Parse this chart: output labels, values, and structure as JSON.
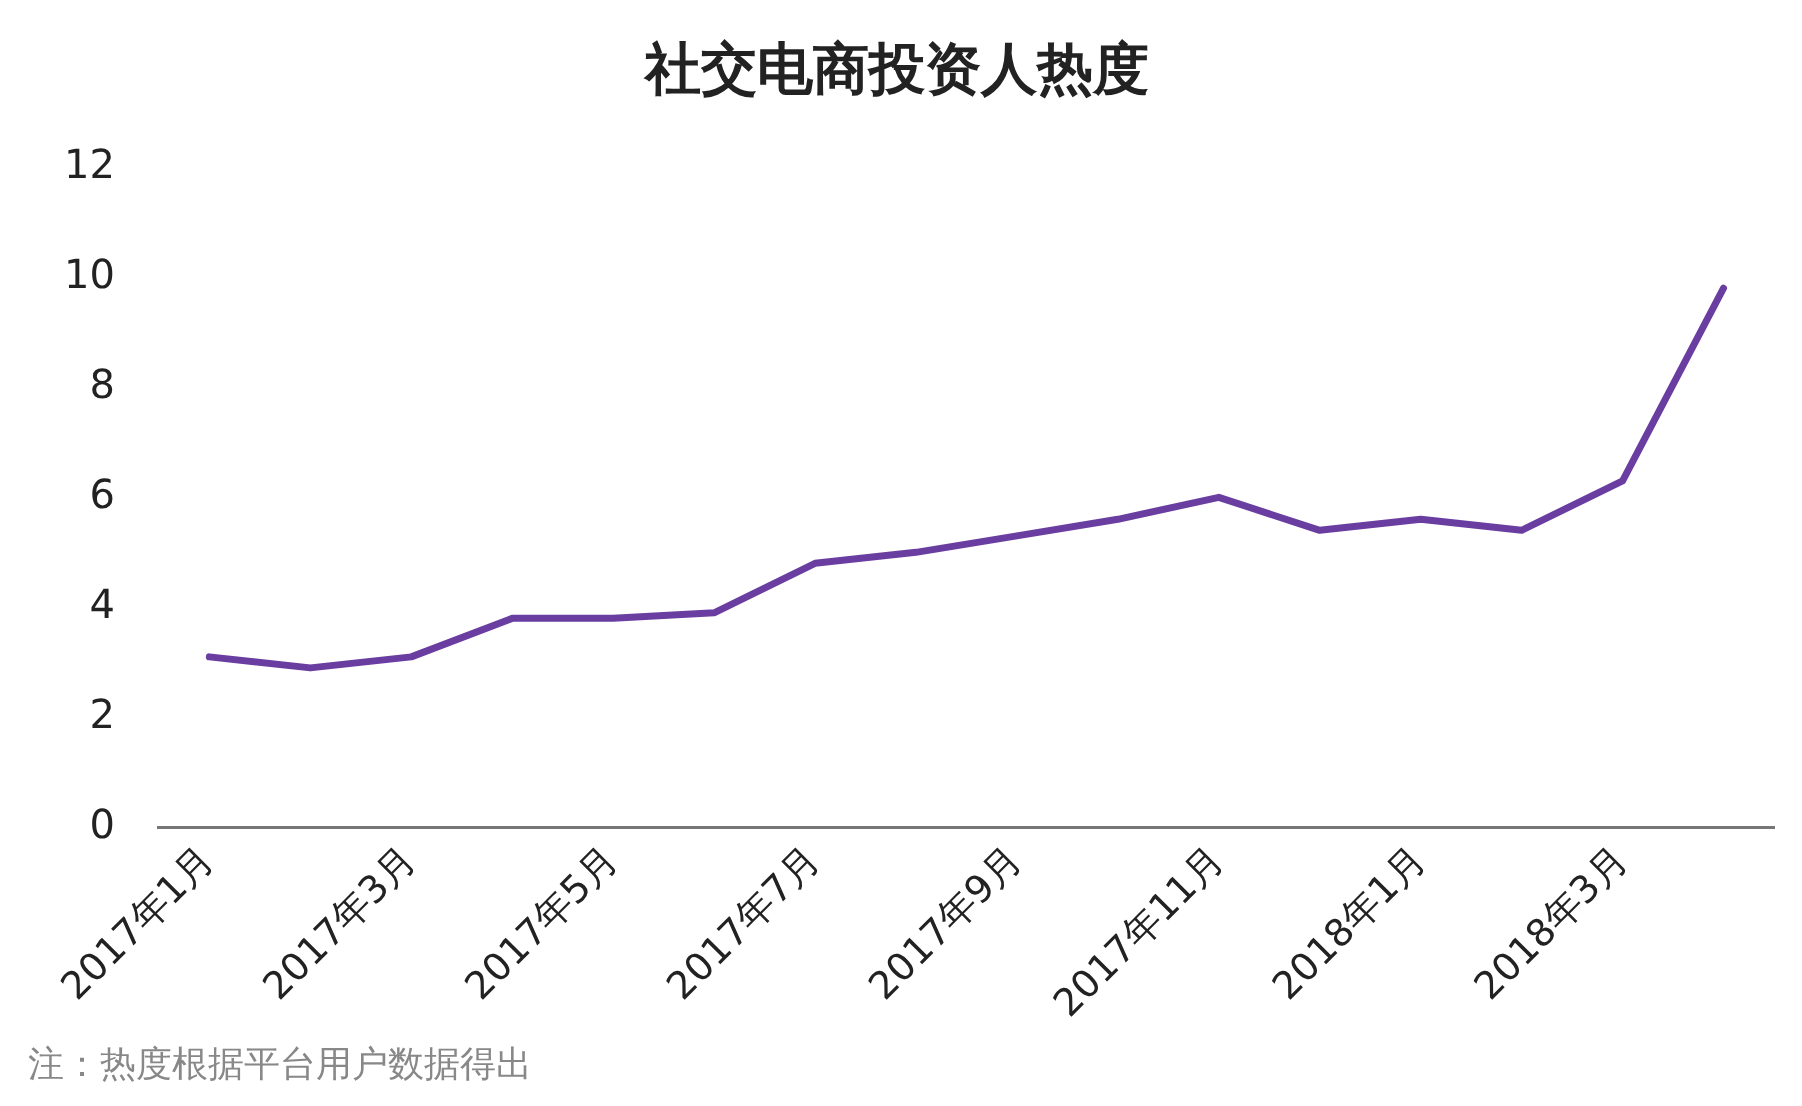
{
  "chart_data": {
    "type": "line",
    "title": "社交电商投资人热度",
    "categories": [
      "2017年1月",
      null,
      "2017年3月",
      null,
      "2017年5月",
      null,
      "2017年7月",
      null,
      "2017年9月",
      null,
      "2017年11月",
      null,
      "2018年1月",
      null,
      "2018年3月",
      null
    ],
    "series": [
      {
        "color": "#6a3ea1",
        "values": [
          3.1,
          2.9,
          3.1,
          3.8,
          3.8,
          3.9,
          4.8,
          5.0,
          5.3,
          5.6,
          6.0,
          5.4,
          5.6,
          5.4,
          6.3,
          9.8
        ]
      }
    ],
    "ylim": [
      0,
      12
    ],
    "yticks": [
      0,
      2,
      4,
      6,
      8,
      10,
      12
    ],
    "grid": false,
    "legend": false,
    "marker": "none",
    "line_style": "solid",
    "annotations": [
      "注：热度根据平台用户数据得出"
    ]
  }
}
